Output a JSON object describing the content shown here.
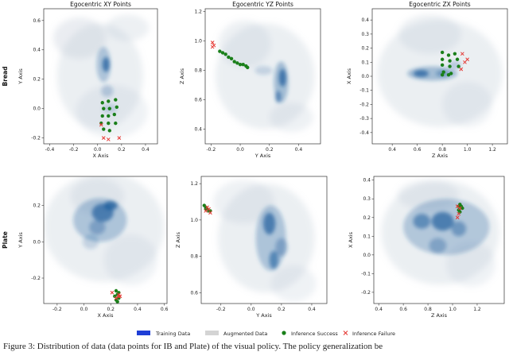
{
  "figure": {
    "caption": "Figure 3: Distribution of data (data points for IB and Plate) of the visual policy. The policy generalization be",
    "legend": {
      "items": [
        {
          "label": "Training Data",
          "kind": "training-swatch",
          "color": "#1f3fd6"
        },
        {
          "label": "Augmented Data",
          "kind": "augmented-swatch",
          "color": "#d4d4d4"
        },
        {
          "label": "Inference Success",
          "kind": "success-dot",
          "color": "#1a7f1a"
        },
        {
          "label": "Inference Failure",
          "kind": "failure-cross",
          "color": "#e53935"
        }
      ]
    },
    "row_labels": [
      "Bread",
      "Plate"
    ]
  },
  "chart_data": [
    {
      "type": "scatter",
      "row": "Bread",
      "title": "Egocentric XY Points",
      "xlabel": "X Axis",
      "ylabel": "Y Axis",
      "xlim": [
        -0.45,
        0.5
      ],
      "ylim": [
        -0.24,
        0.68
      ],
      "xticks": [
        -0.4,
        -0.2,
        0.0,
        0.2,
        0.4
      ],
      "xtick_labels": [
        "-0.4",
        "-0.2",
        "0.0",
        "0.2",
        "0.4"
      ],
      "yticks": [
        -0.2,
        0.0,
        0.2,
        0.4,
        0.6
      ],
      "ytick_labels": [
        "-0.2",
        "0.0",
        "0.2",
        "0.4",
        "0.6"
      ],
      "augmented": [
        {
          "x": 0.02,
          "y": 0.22,
          "rx": 0.36,
          "ry": 0.36,
          "o": 0.28
        },
        {
          "x": -0.15,
          "y": 0.48,
          "rx": 0.22,
          "ry": 0.14,
          "o": 0.3
        },
        {
          "x": 0.25,
          "y": 0.55,
          "rx": 0.18,
          "ry": 0.09,
          "o": 0.26
        },
        {
          "x": 0.12,
          "y": -0.02,
          "rx": 0.3,
          "ry": 0.18,
          "o": 0.22
        }
      ],
      "training": [
        {
          "x": 0.05,
          "y": 0.3,
          "rx": 0.06,
          "ry": 0.12,
          "o": 0.3
        },
        {
          "x": 0.07,
          "y": 0.3,
          "rx": 0.03,
          "ry": 0.05,
          "o": 0.75
        },
        {
          "x": 0.08,
          "y": 0.12,
          "rx": 0.05,
          "ry": 0.04,
          "o": 0.25
        },
        {
          "x": 0.1,
          "y": 0.0,
          "rx": 0.06,
          "ry": 0.03,
          "o": 0.2
        }
      ],
      "success": [
        [
          0.04,
          0.04
        ],
        [
          0.09,
          0.05
        ],
        [
          0.15,
          0.06
        ],
        [
          0.05,
          0.0
        ],
        [
          0.1,
          0.0
        ],
        [
          0.16,
          0.01
        ],
        [
          0.04,
          -0.05
        ],
        [
          0.09,
          -0.05
        ],
        [
          0.14,
          -0.04
        ],
        [
          0.03,
          -0.1
        ],
        [
          0.09,
          -0.1
        ],
        [
          0.15,
          -0.1
        ],
        [
          0.05,
          -0.14
        ],
        [
          0.1,
          -0.15
        ]
      ],
      "failure": [
        [
          0.05,
          -0.2
        ],
        [
          0.09,
          -0.21
        ],
        [
          0.18,
          -0.2
        ],
        [
          0.03,
          -0.11
        ]
      ]
    },
    {
      "type": "scatter",
      "row": "Bread",
      "title": "Egocentric YZ Points",
      "xlabel": "Y Axis",
      "ylabel": "Z Axis",
      "xlim": [
        -0.24,
        0.55
      ],
      "ylim": [
        0.3,
        1.22
      ],
      "xticks": [
        -0.2,
        0.0,
        0.2,
        0.4
      ],
      "xtick_labels": [
        "-0.2",
        "0.0",
        "0.2",
        "0.4"
      ],
      "yticks": [
        0.4,
        0.6,
        0.8,
        1.0,
        1.2
      ],
      "ytick_labels": [
        "0.4",
        "0.6",
        "0.8",
        "1.0",
        "1.2"
      ],
      "augmented": [
        {
          "x": 0.17,
          "y": 0.76,
          "rx": 0.34,
          "ry": 0.36,
          "o": 0.28
        },
        {
          "x": 0.03,
          "y": 0.98,
          "rx": 0.18,
          "ry": 0.16,
          "o": 0.26
        },
        {
          "x": 0.35,
          "y": 0.48,
          "rx": 0.15,
          "ry": 0.1,
          "o": 0.24
        }
      ],
      "training": [
        {
          "x": 0.28,
          "y": 0.72,
          "rx": 0.05,
          "ry": 0.14,
          "o": 0.35
        },
        {
          "x": 0.29,
          "y": 0.75,
          "rx": 0.025,
          "ry": 0.06,
          "o": 0.75
        },
        {
          "x": 0.26,
          "y": 0.62,
          "rx": 0.02,
          "ry": 0.04,
          "o": 0.6
        },
        {
          "x": 0.16,
          "y": 0.8,
          "rx": 0.06,
          "ry": 0.03,
          "o": 0.2
        }
      ],
      "success": [
        [
          -0.14,
          0.93
        ],
        [
          -0.12,
          0.92
        ],
        [
          -0.08,
          0.89
        ],
        [
          -0.06,
          0.88
        ],
        [
          -0.04,
          0.86
        ],
        [
          -0.02,
          0.85
        ],
        [
          0.0,
          0.84
        ],
        [
          0.02,
          0.84
        ],
        [
          0.04,
          0.83
        ],
        [
          0.05,
          0.82
        ],
        [
          -0.1,
          0.91
        ]
      ],
      "failure": [
        [
          -0.19,
          0.99
        ],
        [
          -0.18,
          0.97
        ],
        [
          -0.19,
          0.96
        ]
      ]
    },
    {
      "type": "scatter",
      "row": "Bread",
      "title": "Egocentric ZX Points",
      "xlabel": "Z Axis",
      "ylabel": "X Axis",
      "xlim": [
        0.24,
        1.32
      ],
      "ylim": [
        -0.48,
        0.48
      ],
      "xticks": [
        0.4,
        0.6,
        0.8,
        1.0,
        1.2
      ],
      "xtick_labels": [
        "0.4",
        "0.6",
        "0.8",
        "1.0",
        "1.2"
      ],
      "yticks": [
        -0.4,
        -0.3,
        -0.2,
        -0.1,
        0.0,
        0.1,
        0.2,
        0.3,
        0.4
      ],
      "ytick_labels": [
        "-0.4",
        "-0.3",
        "-0.2",
        "-0.1",
        "0.0",
        "0.1",
        "0.2",
        "0.3",
        "0.4"
      ],
      "augmented": [
        {
          "x": 0.78,
          "y": 0.02,
          "rx": 0.5,
          "ry": 0.38,
          "o": 0.28
        },
        {
          "x": 0.7,
          "y": 0.3,
          "rx": 0.25,
          "ry": 0.14,
          "o": 0.26
        },
        {
          "x": 1.0,
          "y": -0.2,
          "rx": 0.2,
          "ry": 0.16,
          "o": 0.22
        }
      ],
      "training": [
        {
          "x": 0.72,
          "y": 0.02,
          "rx": 0.2,
          "ry": 0.05,
          "o": 0.35
        },
        {
          "x": 0.63,
          "y": 0.02,
          "rx": 0.06,
          "ry": 0.025,
          "o": 0.75
        },
        {
          "x": 0.8,
          "y": 0.02,
          "rx": 0.05,
          "ry": 0.02,
          "o": 0.45
        },
        {
          "x": 0.9,
          "y": 0.08,
          "rx": 0.05,
          "ry": 0.03,
          "o": 0.25
        }
      ],
      "success": [
        [
          0.8,
          0.17
        ],
        [
          0.85,
          0.15
        ],
        [
          0.9,
          0.16
        ],
        [
          0.8,
          0.12
        ],
        [
          0.86,
          0.11
        ],
        [
          0.92,
          0.12
        ],
        [
          0.8,
          0.08
        ],
        [
          0.86,
          0.07
        ],
        [
          0.93,
          0.07
        ],
        [
          0.81,
          0.03
        ],
        [
          0.87,
          0.02
        ],
        [
          0.8,
          0.01
        ],
        [
          0.85,
          0.01
        ]
      ],
      "failure": [
        [
          0.96,
          0.16
        ],
        [
          0.98,
          0.1
        ],
        [
          0.95,
          0.05
        ],
        [
          1.0,
          0.12
        ]
      ]
    },
    {
      "type": "scatter",
      "row": "Plate",
      "title": "",
      "xlabel": "X Axis",
      "ylabel": "Y Axis",
      "xlim": [
        -0.3,
        0.62
      ],
      "ylim": [
        -0.34,
        0.36
      ],
      "xticks": [
        -0.2,
        0.0,
        0.2,
        0.4,
        0.6
      ],
      "xtick_labels": [
        "-0.2",
        "0.0",
        "0.2",
        "0.4",
        "0.6"
      ],
      "yticks": [
        -0.2,
        0.0,
        0.2
      ],
      "ytick_labels": [
        "-0.2",
        "0.0",
        "0.2"
      ],
      "augmented": [
        {
          "x": 0.15,
          "y": 0.08,
          "rx": 0.45,
          "ry": 0.3,
          "o": 0.28
        },
        {
          "x": 0.1,
          "y": 0.25,
          "rx": 0.2,
          "ry": 0.1,
          "o": 0.24
        },
        {
          "x": 0.35,
          "y": -0.1,
          "rx": 0.2,
          "ry": 0.14,
          "o": 0.22
        }
      ],
      "training": [
        {
          "x": 0.12,
          "y": 0.12,
          "rx": 0.2,
          "ry": 0.12,
          "o": 0.3
        },
        {
          "x": 0.14,
          "y": 0.16,
          "rx": 0.08,
          "ry": 0.05,
          "o": 0.7
        },
        {
          "x": 0.2,
          "y": 0.2,
          "rx": 0.05,
          "ry": 0.025,
          "o": 0.8
        },
        {
          "x": 0.1,
          "y": 0.08,
          "rx": 0.06,
          "ry": 0.04,
          "o": 0.35
        },
        {
          "x": 0.05,
          "y": 0.0,
          "rx": 0.06,
          "ry": 0.04,
          "o": 0.2
        }
      ],
      "success": [
        [
          0.24,
          -0.27
        ],
        [
          0.26,
          -0.28
        ],
        [
          0.25,
          -0.29
        ],
        [
          0.23,
          -0.3
        ],
        [
          0.26,
          -0.31
        ],
        [
          0.24,
          -0.32
        ],
        [
          0.25,
          -0.33
        ]
      ],
      "failure": [
        [
          0.21,
          -0.28
        ],
        [
          0.26,
          -0.3
        ],
        [
          0.27,
          -0.3
        ],
        [
          0.24,
          -0.31
        ],
        [
          0.26,
          -0.29
        ]
      ]
    },
    {
      "type": "scatter",
      "row": "Plate",
      "title": "",
      "xlabel": "Y Axis",
      "ylabel": "Z Axis",
      "xlim": [
        -0.33,
        0.5
      ],
      "ylim": [
        0.54,
        1.24
      ],
      "xticks": [
        -0.2,
        0.0,
        0.2,
        0.4
      ],
      "xtick_labels": [
        "-0.2",
        "0.0",
        "0.2",
        "0.4"
      ],
      "yticks": [
        0.6,
        0.8,
        1.0,
        1.2
      ],
      "ytick_labels": [
        "0.6",
        "0.8",
        "1.0",
        "1.2"
      ],
      "augmented": [
        {
          "x": 0.1,
          "y": 0.9,
          "rx": 0.32,
          "ry": 0.3,
          "o": 0.28
        },
        {
          "x": -0.05,
          "y": 1.1,
          "rx": 0.2,
          "ry": 0.12,
          "o": 0.24
        },
        {
          "x": 0.28,
          "y": 0.65,
          "rx": 0.15,
          "ry": 0.1,
          "o": 0.22
        }
      ],
      "training": [
        {
          "x": 0.13,
          "y": 0.9,
          "rx": 0.1,
          "ry": 0.18,
          "o": 0.3
        },
        {
          "x": 0.12,
          "y": 0.98,
          "rx": 0.04,
          "ry": 0.06,
          "o": 0.7
        },
        {
          "x": 0.15,
          "y": 0.78,
          "rx": 0.03,
          "ry": 0.05,
          "o": 0.6
        },
        {
          "x": 0.2,
          "y": 0.85,
          "rx": 0.04,
          "ry": 0.05,
          "o": 0.35
        }
      ],
      "success": [
        [
          -0.31,
          1.08
        ],
        [
          -0.3,
          1.07
        ],
        [
          -0.29,
          1.06
        ],
        [
          -0.28,
          1.05
        ],
        [
          -0.27,
          1.05
        ],
        [
          -0.3,
          1.06
        ]
      ],
      "failure": [
        [
          -0.29,
          1.07
        ],
        [
          -0.28,
          1.06
        ],
        [
          -0.27,
          1.04
        ],
        [
          -0.3,
          1.05
        ]
      ]
    },
    {
      "type": "scatter",
      "row": "Plate",
      "title": "",
      "xlabel": "Z Axis",
      "ylabel": "X Axis",
      "xlim": [
        0.36,
        1.42
      ],
      "ylim": [
        -0.26,
        0.42
      ],
      "xticks": [
        0.4,
        0.6,
        0.8,
        1.0,
        1.2
      ],
      "xtick_labels": [
        "0.4",
        "0.6",
        "0.8",
        "1.0",
        "1.2"
      ],
      "yticks": [
        -0.2,
        -0.1,
        0.0,
        0.1,
        0.2,
        0.3,
        0.4
      ],
      "ytick_labels": [
        "-0.2",
        "-0.1",
        "0.0",
        "0.1",
        "0.2",
        "0.3",
        "0.4"
      ],
      "augmented": [
        {
          "x": 0.9,
          "y": 0.12,
          "rx": 0.48,
          "ry": 0.28,
          "o": 0.28
        },
        {
          "x": 0.8,
          "y": 0.32,
          "rx": 0.25,
          "ry": 0.08,
          "o": 0.24
        },
        {
          "x": 1.15,
          "y": -0.05,
          "rx": 0.2,
          "ry": 0.12,
          "o": 0.22
        }
      ],
      "training": [
        {
          "x": 0.95,
          "y": 0.15,
          "rx": 0.35,
          "ry": 0.15,
          "o": 0.28
        },
        {
          "x": 0.92,
          "y": 0.18,
          "rx": 0.09,
          "ry": 0.05,
          "o": 0.7
        },
        {
          "x": 0.75,
          "y": 0.18,
          "rx": 0.07,
          "ry": 0.04,
          "o": 0.55
        },
        {
          "x": 1.05,
          "y": 0.14,
          "rx": 0.06,
          "ry": 0.04,
          "o": 0.45
        },
        {
          "x": 0.88,
          "y": 0.05,
          "rx": 0.07,
          "ry": 0.04,
          "o": 0.35
        }
      ],
      "success": [
        [
          1.05,
          0.26
        ],
        [
          1.06,
          0.27
        ],
        [
          1.07,
          0.26
        ],
        [
          1.08,
          0.25
        ],
        [
          1.05,
          0.24
        ],
        [
          1.06,
          0.23
        ]
      ],
      "failure": [
        [
          1.04,
          0.26
        ],
        [
          1.05,
          0.22
        ],
        [
          1.06,
          0.25
        ],
        [
          1.04,
          0.2
        ]
      ]
    }
  ]
}
